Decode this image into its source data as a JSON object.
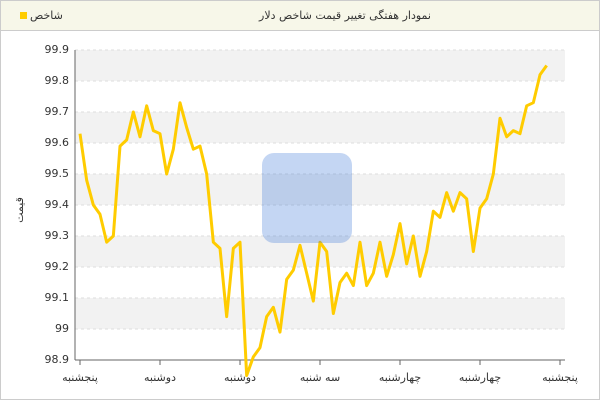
{
  "chart_data": {
    "type": "line",
    "title": "نمودار هفتگی تغییر قیمت شاخص دلار",
    "y_label": "قیمت",
    "categories": [
      "پنجشنبه",
      null,
      null,
      null,
      null,
      null,
      null,
      null,
      null,
      null,
      null,
      null,
      "دوشنبه",
      null,
      null,
      null,
      null,
      null,
      null,
      null,
      null,
      null,
      null,
      null,
      "دوشنبه",
      null,
      null,
      null,
      null,
      null,
      null,
      null,
      null,
      null,
      null,
      null,
      "سه شنبه",
      null,
      null,
      null,
      null,
      null,
      null,
      null,
      null,
      null,
      null,
      null,
      "چهارشنبه",
      null,
      null,
      null,
      null,
      null,
      null,
      null,
      null,
      null,
      null,
      null,
      "چهارشنبه",
      null,
      null,
      null,
      null,
      null,
      null,
      null,
      null,
      null,
      null,
      null,
      "پنجشنبه"
    ],
    "series": [
      {
        "name": "شاخص",
        "color": "#ffcc00",
        "values": [
          99.63,
          99.48,
          99.4,
          99.37,
          99.28,
          99.3,
          99.59,
          99.61,
          99.7,
          99.62,
          99.72,
          99.64,
          99.63,
          99.5,
          99.58,
          99.73,
          99.65,
          99.58,
          99.59,
          99.5,
          99.28,
          99.26,
          99.04,
          99.26,
          99.28,
          98.85,
          98.91,
          98.94,
          99.04,
          99.07,
          98.99,
          99.16,
          99.19,
          99.27,
          99.18,
          99.09,
          99.28,
          99.25,
          99.05,
          99.15,
          99.18,
          99.14,
          99.28,
          99.14,
          99.18,
          99.28,
          99.17,
          99.24,
          99.34,
          99.21,
          99.3,
          99.17,
          99.25,
          99.38,
          99.36,
          99.44,
          99.38,
          99.44,
          99.42,
          99.25,
          99.39,
          99.42,
          99.5,
          99.68,
          99.62,
          99.64,
          99.63,
          99.72,
          99.73,
          99.82,
          99.85,
          null,
          null
        ]
      }
    ],
    "ylim": [
      98.9,
      99.9
    ],
    "yticks": [
      98.9,
      99,
      99.1,
      99.2,
      99.3,
      99.4,
      99.5,
      99.6,
      99.7,
      99.8,
      99.9
    ],
    "grid": true
  }
}
